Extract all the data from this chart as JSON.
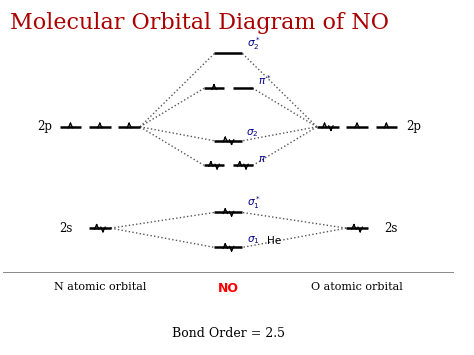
{
  "title": "Molecular Orbital Diagram of NO",
  "title_color": "#aa0000",
  "title_fontsize": 16,
  "bg_color": "#ffffff",
  "label_color": "#00008b",
  "bond_order_text": "Bond Order = 2.5",
  "n_label": "N atomic orbital",
  "no_label": "NO",
  "no_label_color": "#ff0000",
  "o_label": "O atomic orbital",
  "line_color": "#000000",
  "dotted_color": "#555555",
  "line_lw": 1.8,
  "arrow_size": 0.22,
  "arrow_lw": 1.0
}
